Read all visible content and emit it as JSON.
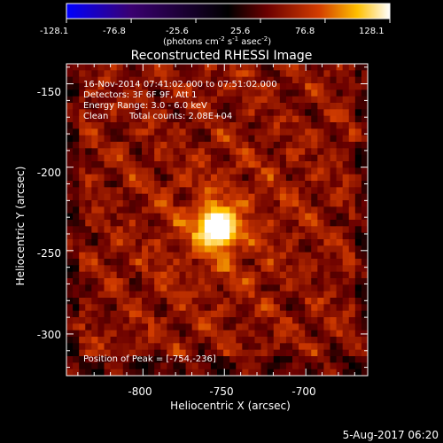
{
  "colorbar": {
    "ticks": [
      "-128.1",
      "-76.8",
      "-25.6",
      "25.6",
      "76.8",
      "128.1"
    ],
    "unit_parts": {
      "a": "(photons cm",
      "a_sup": "-2",
      "b": " s",
      "b_sup": "-1",
      "c": " asec",
      "c_sup": "-2",
      "d": ")"
    },
    "range": [
      -128.1,
      128.1
    ],
    "palette": [
      "#0000ff",
      "#3a0070",
      "#000000",
      "#6b0000",
      "#d23c00",
      "#ffc000",
      "#ffffff"
    ]
  },
  "info": {
    "line1": "16-Nov-2014 07:41:02.000 to 07:51:02.000",
    "line2": "Detectors: 3F 6F 9F, Att 1",
    "line3": "Energy Range: 3.0 - 6.0 keV",
    "line4_a": "Clean",
    "line4_b": "Total counts: 2.08E+04",
    "peak": "Position of Peak = [-754,-236]"
  },
  "footer": {
    "timestamp": "5-Aug-2017 06:20"
  },
  "chart_data": {
    "type": "heatmap",
    "title": "Reconstructed RHESSI Image",
    "xlabel": "Heliocentric X (arcsec)",
    "ylabel": "Heliocentric Y (arcsec)",
    "x_ticks": [
      "-800",
      "-750",
      "-700"
    ],
    "y_ticks": [
      "-150",
      "-200",
      "-250",
      "-300"
    ],
    "xlim": [
      -847,
      -662
    ],
    "ylim": [
      -325,
      -138
    ],
    "peak_position": [
      -754,
      -236
    ],
    "grid": false
  }
}
